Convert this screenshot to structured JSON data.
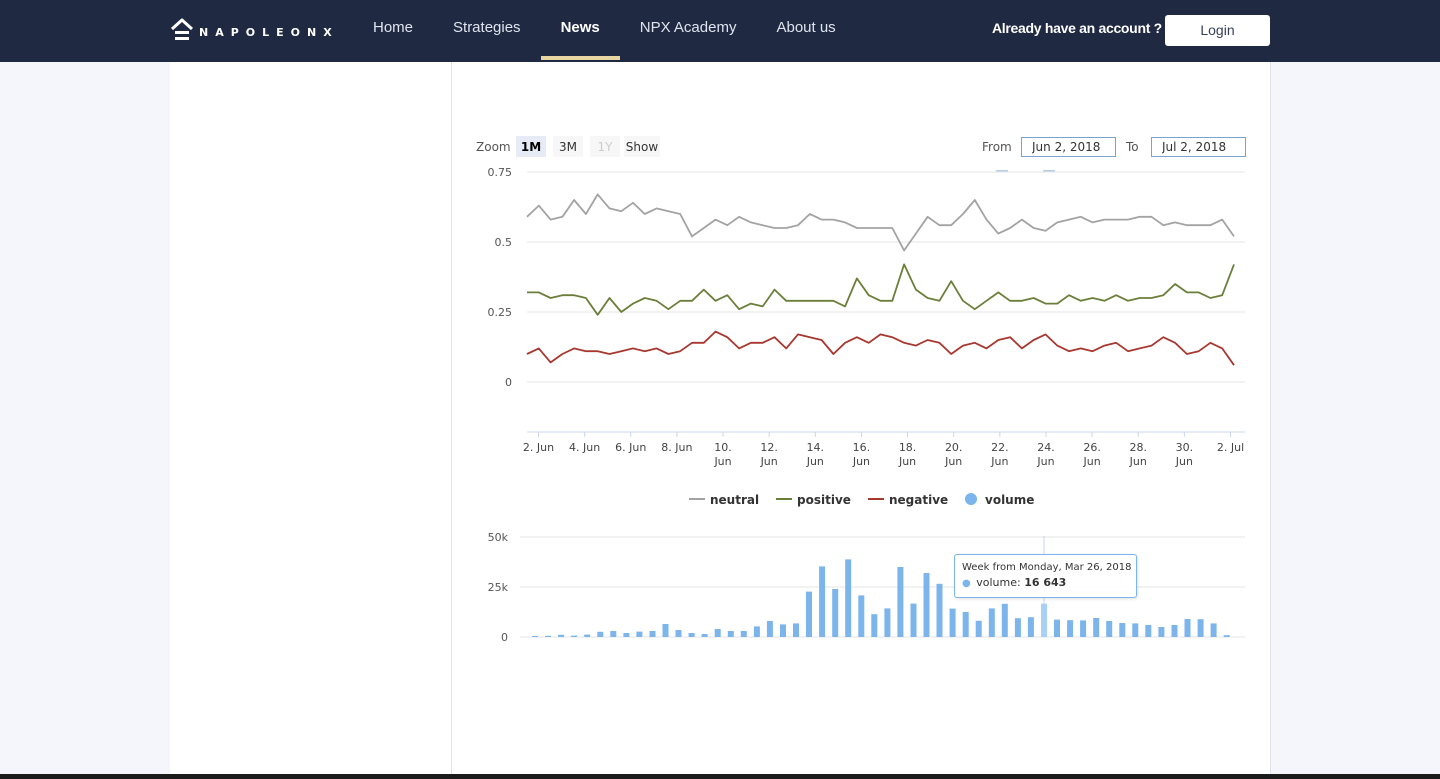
{
  "brand": {
    "name": "NAPOLEONX"
  },
  "nav": {
    "items": [
      {
        "label": "Home",
        "active": false
      },
      {
        "label": "Strategies",
        "active": false
      },
      {
        "label": "News",
        "active": true
      },
      {
        "label": "NPX Academy",
        "active": false
      },
      {
        "label": "About us",
        "active": false
      }
    ]
  },
  "account": {
    "prompt": "Already have an account ?",
    "login_label": "Login"
  },
  "range_selector": {
    "zoom_label": "Zoom",
    "buttons": [
      {
        "label": "1M",
        "state": "selected"
      },
      {
        "label": "3M",
        "state": "normal"
      },
      {
        "label": "1Y",
        "state": "disabled"
      },
      {
        "label": "Show",
        "state": "normal"
      }
    ],
    "from_label": "From",
    "from_value": "Jun 2, 2018",
    "to_label": "To",
    "to_value": "Jul 2, 2018"
  },
  "tooltip": {
    "header": "Week from Monday, Mar 26, 2018",
    "series": "volume",
    "value": "16 643"
  },
  "colors": {
    "header_bg": "#1f2942",
    "active_underline": "#e8d6a2",
    "neutral": "#a3a3a3",
    "positive": "#6b7f3a",
    "negative": "#a8382f",
    "volume": "#7cb5ec"
  },
  "chart_data": [
    {
      "type": "line",
      "title": "",
      "xlabel": "",
      "ylabel": "",
      "x_tick_labels": [
        "2. Jun",
        "4. Jun",
        "6. Jun",
        "8. Jun",
        "10. Jun",
        "12. Jun",
        "14. Jun",
        "16. Jun",
        "18. Jun",
        "20. Jun",
        "22. Jun",
        "24. Jun",
        "26. Jun",
        "28. Jun",
        "30. Jun",
        "2. Jul"
      ],
      "y_tick_labels": [
        "0.75",
        "0.5",
        "0.25",
        "0"
      ],
      "ylim": [
        0,
        0.75
      ],
      "grid": true,
      "legend_position": "bottom-center",
      "x_dates": [
        "Jun 2",
        "Jun 2.5",
        "Jun 3",
        "Jun 3.5",
        "Jun 4",
        "Jun 4.5",
        "Jun 5",
        "Jun 5.5",
        "Jun 6",
        "Jun 6.5",
        "Jun 7",
        "Jun 7.5",
        "Jun 8",
        "Jun 8.5",
        "Jun 9",
        "Jun 9.5",
        "Jun 10",
        "Jun 10.5",
        "Jun 11",
        "Jun 11.5",
        "Jun 12",
        "Jun 12.5",
        "Jun 13",
        "Jun 13.5",
        "Jun 14",
        "Jun 14.5",
        "Jun 15",
        "Jun 15.5",
        "Jun 16",
        "Jun 16.5",
        "Jun 17",
        "Jun 17.5",
        "Jun 18",
        "Jun 18.5",
        "Jun 19",
        "Jun 19.5",
        "Jun 20",
        "Jun 20.5",
        "Jun 21",
        "Jun 21.5",
        "Jun 22",
        "Jun 22.5",
        "Jun 23",
        "Jun 23.5",
        "Jun 24",
        "Jun 24.5",
        "Jun 25",
        "Jun 25.5",
        "Jun 26",
        "Jun 26.5",
        "Jun 27",
        "Jun 27.5",
        "Jun 28",
        "Jun 28.5",
        "Jun 29",
        "Jun 29.5",
        "Jun 30",
        "Jun 30.5",
        "Jul 1",
        "Jul 1.5",
        "Jul 2"
      ],
      "series": [
        {
          "name": "neutral",
          "color": "#a3a3a3",
          "values": [
            0.59,
            0.63,
            0.58,
            0.59,
            0.65,
            0.6,
            0.67,
            0.62,
            0.61,
            0.64,
            0.6,
            0.62,
            0.61,
            0.6,
            0.52,
            0.55,
            0.58,
            0.56,
            0.59,
            0.57,
            0.56,
            0.55,
            0.55,
            0.56,
            0.6,
            0.58,
            0.58,
            0.57,
            0.55,
            0.55,
            0.55,
            0.55,
            0.47,
            0.53,
            0.59,
            0.56,
            0.56,
            0.6,
            0.65,
            0.58,
            0.53,
            0.55,
            0.58,
            0.55,
            0.54,
            0.57,
            0.58,
            0.59,
            0.57,
            0.58,
            0.58,
            0.58,
            0.59,
            0.59,
            0.56,
            0.57,
            0.56,
            0.56,
            0.56,
            0.58,
            0.52
          ]
        },
        {
          "name": "positive",
          "color": "#6b7f3a",
          "values": [
            0.32,
            0.32,
            0.3,
            0.31,
            0.31,
            0.3,
            0.24,
            0.3,
            0.25,
            0.28,
            0.3,
            0.29,
            0.26,
            0.29,
            0.29,
            0.33,
            0.29,
            0.31,
            0.26,
            0.28,
            0.27,
            0.33,
            0.29,
            0.29,
            0.29,
            0.29,
            0.29,
            0.27,
            0.37,
            0.31,
            0.29,
            0.29,
            0.42,
            0.33,
            0.3,
            0.29,
            0.36,
            0.29,
            0.26,
            0.29,
            0.32,
            0.29,
            0.29,
            0.3,
            0.28,
            0.28,
            0.31,
            0.29,
            0.3,
            0.29,
            0.31,
            0.29,
            0.3,
            0.3,
            0.31,
            0.35,
            0.32,
            0.32,
            0.3,
            0.31,
            0.42
          ]
        },
        {
          "name": "negative",
          "color": "#a8382f",
          "values": [
            0.1,
            0.12,
            0.07,
            0.1,
            0.12,
            0.11,
            0.11,
            0.1,
            0.11,
            0.12,
            0.11,
            0.12,
            0.1,
            0.11,
            0.14,
            0.14,
            0.18,
            0.16,
            0.12,
            0.14,
            0.14,
            0.16,
            0.12,
            0.17,
            0.16,
            0.15,
            0.1,
            0.14,
            0.16,
            0.14,
            0.17,
            0.16,
            0.14,
            0.13,
            0.15,
            0.14,
            0.1,
            0.13,
            0.14,
            0.12,
            0.15,
            0.16,
            0.12,
            0.15,
            0.17,
            0.13,
            0.11,
            0.12,
            0.11,
            0.13,
            0.14,
            0.11,
            0.12,
            0.13,
            0.16,
            0.14,
            0.1,
            0.11,
            0.14,
            0.12,
            0.06
          ]
        }
      ]
    },
    {
      "type": "bar",
      "title": "",
      "xlabel": "",
      "ylabel": "",
      "series": [
        {
          "name": "volume",
          "color": "#7cb5ec"
        }
      ],
      "y_tick_labels": [
        "50k",
        "25k",
        "0"
      ],
      "ylim": [
        0,
        50000
      ],
      "grid": true,
      "highlighted_index": 39,
      "values": [
        0,
        600,
        1100,
        700,
        1200,
        2600,
        3000,
        2000,
        2700,
        3000,
        6500,
        3500,
        2000,
        1500,
        4000,
        3000,
        3000,
        5300,
        8000,
        6300,
        6800,
        22700,
        35300,
        24000,
        38800,
        20800,
        11400,
        14300,
        35000,
        16700,
        32000,
        26600,
        14200,
        12500,
        8100,
        14300,
        16600,
        9400,
        9900,
        16643,
        8700,
        8400,
        8300,
        9500,
        8000,
        7000,
        6800,
        6000,
        5000,
        6000,
        9000,
        8900,
        6800,
        900
      ]
    }
  ]
}
